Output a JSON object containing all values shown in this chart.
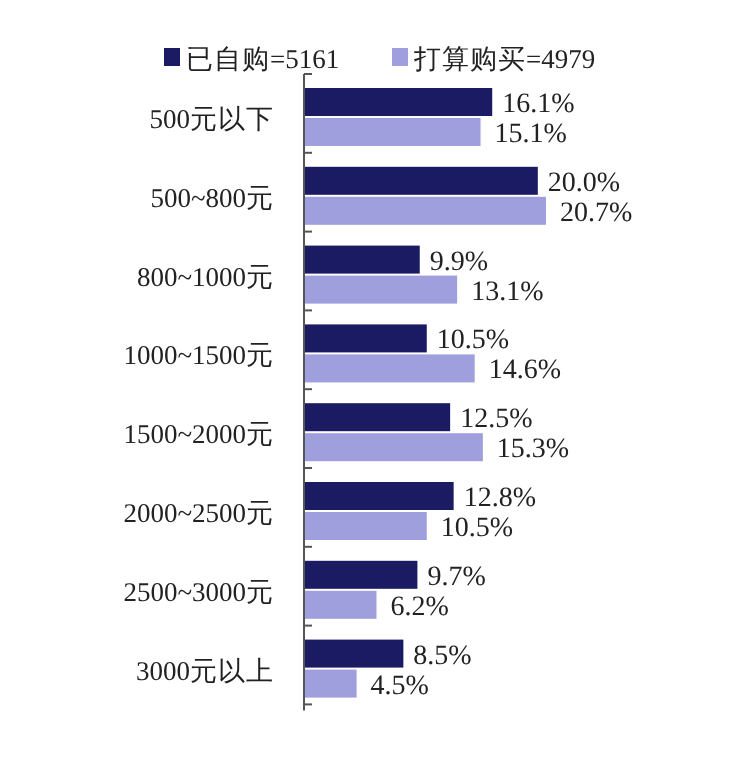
{
  "chart_data": {
    "type": "bar",
    "orientation": "horizontal",
    "legend": "top",
    "categories": [
      "500元以下",
      "500~800元",
      "800~1000元",
      "1000~1500元",
      "1500~2000元",
      "2000~2500元",
      "2500~3000元",
      "3000元以上"
    ],
    "series": [
      {
        "name": "已自购=5161",
        "color": "#1b1b63",
        "values": [
          16.1,
          20.0,
          9.9,
          10.5,
          12.5,
          12.8,
          9.7,
          8.5
        ],
        "value_labels": [
          "16.1%",
          "20.0%",
          "9.9%",
          "10.5%",
          "12.5%",
          "12.8%",
          "9.7%",
          "8.5%"
        ]
      },
      {
        "name": "打算购买=4979",
        "color": "#9e9fdc",
        "values": [
          15.1,
          20.7,
          13.1,
          14.6,
          15.3,
          10.5,
          6.2,
          4.5
        ],
        "value_labels": [
          "15.1%",
          "20.7%",
          "13.1%",
          "14.6%",
          "15.3%",
          "10.5%",
          "6.2%",
          "4.5%"
        ]
      }
    ]
  }
}
